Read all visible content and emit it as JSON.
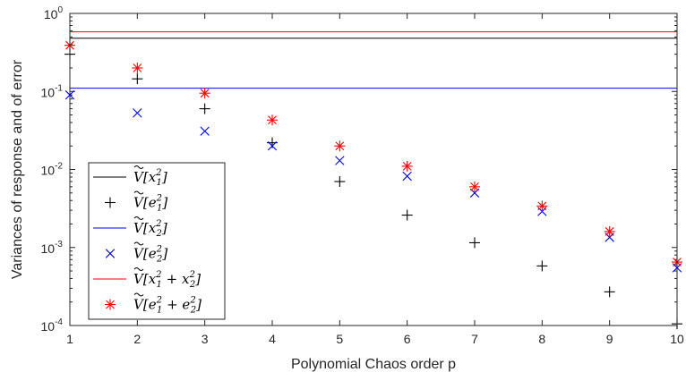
{
  "chart_data": {
    "type": "scatter",
    "title": "",
    "xlabel": "Polynomial Chaos order p",
    "ylabel": "Variances of response and of error",
    "xlim": [
      1,
      10
    ],
    "ylim": [
      0.0001,
      1
    ],
    "yscale": "log",
    "grid": false,
    "legend_position": "bottom-left",
    "x_ticks": [
      1,
      2,
      3,
      4,
      5,
      6,
      7,
      8,
      9,
      10
    ],
    "y_ticks": [
      {
        "value": 0.0001,
        "base": "10",
        "exp": "-4"
      },
      {
        "value": 0.001,
        "base": "10",
        "exp": "-3"
      },
      {
        "value": 0.01,
        "base": "10",
        "exp": "-2"
      },
      {
        "value": 0.1,
        "base": "10",
        "exp": "-1"
      },
      {
        "value": 1,
        "base": "10",
        "exp": "0"
      }
    ],
    "x": [
      1,
      2,
      3,
      4,
      5,
      6,
      7,
      8,
      9,
      10
    ],
    "series": [
      {
        "label_main": "[x",
        "label_sub": "1",
        "label_tail": "]",
        "kind": "hline",
        "value": 0.48,
        "color": "#000000"
      },
      {
        "label_main": "[e",
        "label_sub": "1",
        "label_tail": "]",
        "kind": "points",
        "marker": "plus",
        "color": "#000000",
        "values": [
          0.3,
          0.145,
          0.06,
          0.022,
          0.007,
          0.0026,
          0.00115,
          0.00058,
          0.00027,
          0.000105
        ]
      },
      {
        "label_main": "[x",
        "label_sub": "2",
        "label_tail": "]",
        "kind": "hline",
        "value": 0.11,
        "color": "#0000ff"
      },
      {
        "label_main": "[e",
        "label_sub": "2",
        "label_tail": "]",
        "kind": "points",
        "marker": "cross",
        "color": "#0000ff",
        "values": [
          0.09,
          0.053,
          0.031,
          0.02,
          0.013,
          0.0082,
          0.005,
          0.0029,
          0.00135,
          0.00055
        ]
      },
      {
        "label_main": "[x",
        "label_sub": "1",
        "label_tail": " + x",
        "label_sub2": "2",
        "label_end": "]",
        "kind": "hline",
        "value": 0.58,
        "color": "#ff0000"
      },
      {
        "label_main": "[e",
        "label_sub": "1",
        "label_tail": " + e",
        "label_sub2": "2",
        "label_end": "]",
        "kind": "points",
        "marker": "star",
        "color": "#ff0000",
        "values": [
          0.39,
          0.2,
          0.095,
          0.043,
          0.02,
          0.011,
          0.006,
          0.0034,
          0.0016,
          0.00065
        ]
      }
    ]
  }
}
